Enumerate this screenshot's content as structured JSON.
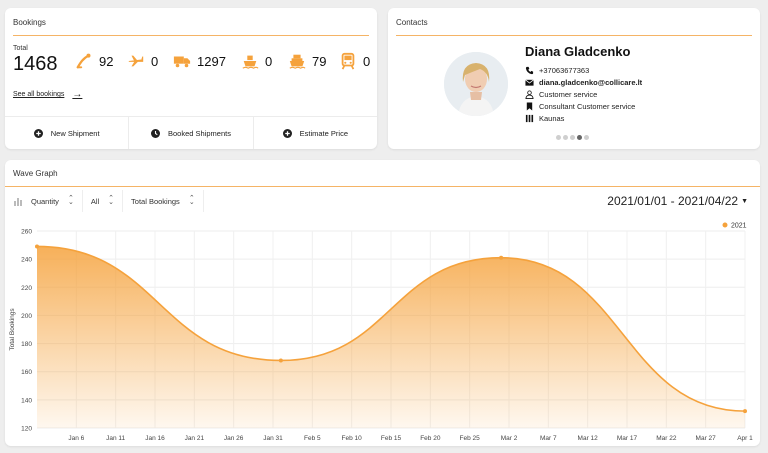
{
  "bookings": {
    "title": "Bookings",
    "total_label": "Total",
    "total_value": "1468",
    "stats": [
      {
        "icon": "courier-icon",
        "value": "92"
      },
      {
        "icon": "airplane-icon",
        "value": "0"
      },
      {
        "icon": "truck-icon",
        "value": "1297"
      },
      {
        "icon": "ship-icon",
        "value": "0"
      },
      {
        "icon": "ferry-icon",
        "value": "79"
      },
      {
        "icon": "train-icon",
        "value": "0"
      }
    ],
    "see_all": "See all bookings",
    "actions": [
      {
        "icon": "plus-circle-icon",
        "label": "New Shipment"
      },
      {
        "icon": "clock-icon",
        "label": "Booked Shipments"
      },
      {
        "icon": "plus-circle-icon",
        "label": "Estimate Price"
      }
    ]
  },
  "contacts": {
    "title": "Contacts",
    "name": "Diana Gladcenko",
    "phone": "+37063677363",
    "email": "diana.gladcenko@collicare.lt",
    "department": "Customer service",
    "position": "Consultant Customer service",
    "city": "Kaunas",
    "carousel": {
      "count": 5,
      "active": 3
    }
  },
  "wave": {
    "title": "Wave Graph",
    "filters": [
      "Quantity",
      "All",
      "Total Bookings"
    ],
    "date_range": "2021/01/01 - 2021/04/22"
  },
  "colors": {
    "accent": "#f5a23c",
    "rule": "#f5b466"
  },
  "chart_data": {
    "type": "area",
    "ylabel": "Total Bookings",
    "xlabel": "",
    "ylim": [
      120,
      260
    ],
    "yticks": [
      120,
      140,
      160,
      180,
      200,
      220,
      240,
      260
    ],
    "xticks": [
      "Jan 6",
      "Jan 11",
      "Jan 16",
      "Jan 21",
      "Jan 26",
      "Jan 31",
      "Feb 5",
      "Feb 10",
      "Feb 15",
      "Feb 20",
      "Feb 25",
      "Mar 2",
      "Mar 7",
      "Mar 12",
      "Mar 17",
      "Mar 22",
      "Mar 27",
      "Apr 1"
    ],
    "legend": {
      "position": "top-right",
      "entries": [
        "2021"
      ]
    },
    "grid": true,
    "series": [
      {
        "name": "2021",
        "x": [
          "2021-01-01",
          "2021-02-01",
          "2021-03-01",
          "2021-04-01"
        ],
        "values": [
          249,
          168,
          241,
          132
        ]
      }
    ]
  }
}
